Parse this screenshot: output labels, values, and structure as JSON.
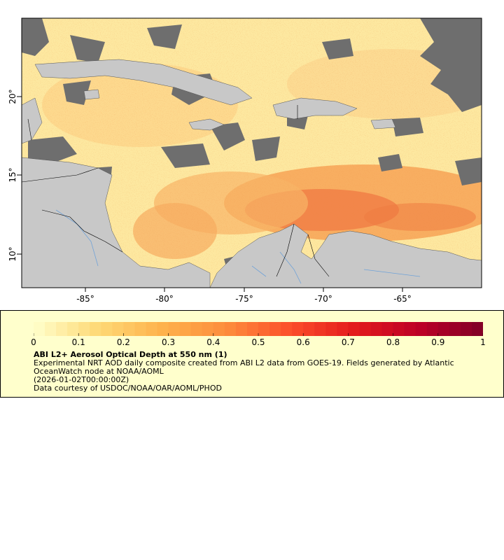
{
  "map": {
    "lat_ticks": [
      "20°",
      "15°",
      "10°"
    ],
    "lon_ticks": [
      "-85°",
      "-80°",
      "-75°",
      "-70°",
      "-65°"
    ],
    "lat_values": [
      20,
      15,
      10
    ],
    "lon_values": [
      -85,
      -80,
      -75,
      -70,
      -65
    ],
    "extent": {
      "lon_min": -89,
      "lon_max": -60,
      "lat_min": 8,
      "lat_max": 25
    },
    "colors": {
      "land": "#c8c8c8",
      "no_data": "#6e6e6e",
      "rivers": "#6fa2d8",
      "borders": "#000000"
    }
  },
  "legend": {
    "colorbar_ticks": [
      "0",
      "0.1",
      "0.2",
      "0.3",
      "0.4",
      "0.5",
      "0.6",
      "0.7",
      "0.8",
      "0.9",
      "1"
    ],
    "colorbar_range": [
      0,
      1
    ],
    "colormap_stops": [
      "#ffffcc",
      "#fed976",
      "#feb24c",
      "#fd8d3c",
      "#fc4e2a",
      "#e31a1c",
      "#bd0026",
      "#800026"
    ],
    "title": "ABI L2+ Aerosol Optical Depth at 550 nm (1)",
    "line1": "Experimental NRT AOD daily composite created from ABI L2 data from GOES-19. Fields generated by Atlantic OceanWatch node at NOAA/AOML",
    "line2": "(2026-01-02T00:00:00Z)",
    "line3": "Data courtesy of USDOC/NOAA/OAR/AOML/PHOD"
  }
}
